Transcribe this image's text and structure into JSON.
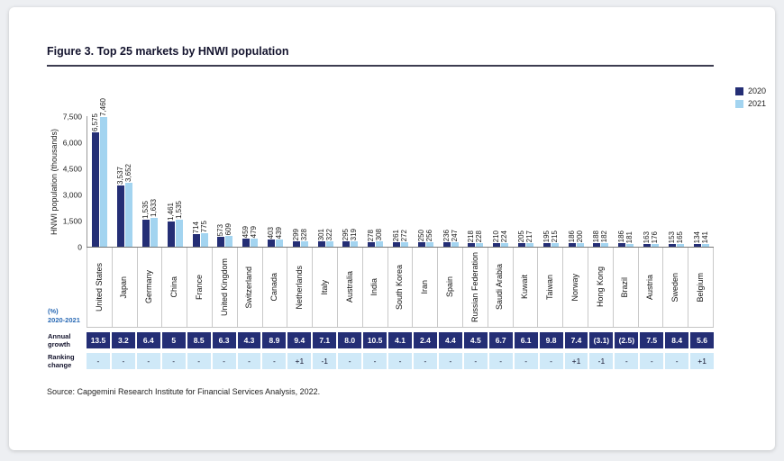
{
  "page": {
    "title": "Figure 3. Top 25 markets by HNWI population",
    "y_axis_title": "HNWI population (thousands)",
    "pct_line1": "(%)",
    "pct_line2": "2020-2021",
    "growth_label": "Annual growth",
    "ranking_label": "Ranking change",
    "source": "Source: Capgemini Research Institute for Financial Services Analysis, 2022."
  },
  "colors": {
    "navy": "#242e75",
    "light_blue": "#a3d4f0",
    "ranking_bg": "#cfe9f8",
    "accent_blue": "#2a6ab5"
  },
  "legend": [
    {
      "label": "2020",
      "color": "#242e75"
    },
    {
      "label": "2021",
      "color": "#a3d4f0"
    }
  ],
  "chart_data": {
    "type": "bar",
    "title": "Figure 3. Top 25 markets by HNWI population",
    "ylabel": "HNWI population (thousands)",
    "ylim": [
      0,
      7500
    ],
    "yticks": [
      0,
      1500,
      3000,
      4500,
      6000,
      7500
    ],
    "grid": false,
    "legend_position": "top-right",
    "categories": [
      "United States",
      "Japan",
      "Germany",
      "China",
      "France",
      "United Kingdom",
      "Switzerland",
      "Canada",
      "Netherlands",
      "Italy",
      "Australia",
      "India",
      "South Korea",
      "Iran",
      "Spain",
      "Russian Federation",
      "Saudi Arabia",
      "Kuwait",
      "Taiwan",
      "Norway",
      "Hong Kong",
      "Brazil",
      "Austria",
      "Sweden",
      "Belgium"
    ],
    "series": [
      {
        "name": "2020",
        "values": [
          6575,
          3537,
          1535,
          1461,
          714,
          573,
          459,
          403,
          299,
          301,
          295,
          278,
          261,
          250,
          236,
          218,
          210,
          205,
          195,
          186,
          188,
          186,
          163,
          153,
          134
        ]
      },
      {
        "name": "2021",
        "values": [
          7460,
          3652,
          1633,
          1535,
          775,
          609,
          479,
          439,
          328,
          322,
          319,
          308,
          272,
          256,
          247,
          228,
          224,
          217,
          215,
          200,
          182,
          181,
          176,
          165,
          141
        ]
      }
    ],
    "annual_growth_pct": [
      "13.5",
      "3.2",
      "6.4",
      "5",
      "8.5",
      "6.3",
      "4.3",
      "8.9",
      "9.4",
      "7.1",
      "8.0",
      "10.5",
      "4.1",
      "2.4",
      "4.4",
      "4.5",
      "6.7",
      "6.1",
      "9.8",
      "7.4",
      "(3.1)",
      "(2.5)",
      "7.5",
      "8.4",
      "5.6"
    ],
    "ranking_change": [
      "-",
      "-",
      "-",
      "-",
      "-",
      "-",
      "-",
      "-",
      "+1",
      "-1",
      "-",
      "-",
      "-",
      "-",
      "-",
      "-",
      "-",
      "-",
      "-",
      "+1",
      "-1",
      "-",
      "-",
      "-",
      "+1"
    ]
  }
}
